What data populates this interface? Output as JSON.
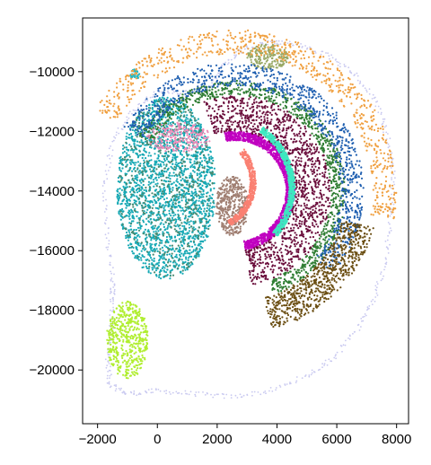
{
  "chart_data": {
    "type": "scatter",
    "title": "",
    "xlabel": "",
    "ylabel": "",
    "xlim": [
      -2500,
      8400
    ],
    "ylim": [
      -21800,
      -8200
    ],
    "y_inverted": true,
    "grid": false,
    "legend": "none",
    "x_ticks": [
      -2000,
      0,
      2000,
      4000,
      6000,
      8000
    ],
    "x_tick_labels": [
      "−2000",
      "0",
      "2000",
      "4000",
      "6000",
      "8000"
    ],
    "y_ticks": [
      -10000,
      -12000,
      -14000,
      -16000,
      -18000,
      -20000
    ],
    "y_tick_labels": [
      "−10000",
      "−12000",
      "−14000",
      "−16000",
      "−18000",
      "−20000"
    ],
    "series": [
      {
        "color": "#c9c9f0",
        "kind": "outline",
        "points": [
          [
            -1500,
            -17600
          ],
          [
            -1550,
            -18600
          ],
          [
            -1650,
            -19600
          ],
          [
            -1600,
            -20500
          ],
          [
            -1000,
            -20800
          ],
          [
            0,
            -20700
          ],
          [
            1200,
            -20800
          ],
          [
            2500,
            -20900
          ],
          [
            3800,
            -20700
          ],
          [
            5000,
            -20200
          ],
          [
            5900,
            -19600
          ],
          [
            6700,
            -18600
          ],
          [
            7200,
            -17700
          ],
          [
            7600,
            -16500
          ],
          [
            7800,
            -15000
          ],
          [
            7900,
            -13500
          ],
          [
            7700,
            -12200
          ],
          [
            7300,
            -11000
          ],
          [
            6600,
            -10100
          ],
          [
            5800,
            -9500
          ],
          [
            4800,
            -9100
          ],
          [
            3800,
            -9000
          ],
          [
            2900,
            -9200
          ],
          [
            2200,
            -9800
          ],
          [
            1700,
            -10600
          ],
          [
            1000,
            -10700
          ],
          [
            0,
            -10700
          ],
          [
            -800,
            -11300
          ],
          [
            -1500,
            -12300
          ],
          [
            -1750,
            -13800
          ],
          [
            -1700,
            -15500
          ],
          [
            -1500,
            -17000
          ]
        ]
      },
      {
        "color": "#17a9b5",
        "kind": "blob",
        "cx": 300,
        "cy": -13900,
        "rx": 1650,
        "ry": 3050,
        "n": 2100
      },
      {
        "color": "#4a8a70",
        "kind": "blob",
        "cx": 300,
        "cy": -13900,
        "rx": 1600,
        "ry": 3000,
        "n": 500
      },
      {
        "color": "#ec8ab8",
        "kind": "blob",
        "cx": 700,
        "cy": -12200,
        "rx": 1100,
        "ry": 500,
        "n": 220
      },
      {
        "color": "#a07f72",
        "kind": "blob",
        "cx": 2500,
        "cy": -14500,
        "rx": 550,
        "ry": 1000,
        "n": 420
      },
      {
        "color": "#98a865",
        "kind": "blob",
        "cx": 3700,
        "cy": -9500,
        "rx": 700,
        "ry": 420,
        "n": 200
      },
      {
        "color": "#2ab8c0",
        "kind": "blob",
        "cx": -750,
        "cy": -10100,
        "rx": 150,
        "ry": 180,
        "n": 40
      },
      {
        "color": "#c000c0",
        "kind": "arc",
        "cx": 2600,
        "cy": -14000,
        "rin": 1700,
        "rout": 2000,
        "a0": -80,
        "a1": 100,
        "n": 1500
      },
      {
        "color": "#6a0d3b",
        "kind": "arc",
        "cx": 2600,
        "cy": -14000,
        "rin": 2000,
        "rout": 3200,
        "a0": -80,
        "a1": 110,
        "n": 1200
      },
      {
        "color": "#2e7d32",
        "kind": "arc",
        "cx": 2600,
        "cy": -14000,
        "rin": 3200,
        "rout": 3700,
        "a0": -70,
        "a1": 150,
        "n": 900
      },
      {
        "color": "#1f5fb0",
        "kind": "arc",
        "cx": 2600,
        "cy": -14000,
        "rin": 3500,
        "rout": 4300,
        "a0": -40,
        "a1": 150,
        "n": 900
      },
      {
        "color": "#6b4e12",
        "kind": "arc",
        "cx": 2600,
        "cy": -14000,
        "rin": 3700,
        "rout": 4800,
        "a0": -75,
        "a1": -15,
        "n": 700
      },
      {
        "color": "#f0a040",
        "kind": "arc",
        "cx": 2600,
        "cy": -14000,
        "rin": 4600,
        "rout": 5400,
        "a0": -10,
        "a1": 150,
        "n": 700
      },
      {
        "color": "#b0ee30",
        "kind": "blob",
        "cx": -1000,
        "cy": -19000,
        "rx": 700,
        "ry": 1300,
        "n": 500
      },
      {
        "color": "#fa8072",
        "kind": "arc",
        "cx": 1600,
        "cy": -13700,
        "rin": 1500,
        "rout": 1700,
        "a0": -60,
        "a1": 40,
        "n": 500
      },
      {
        "color": "#3ee8c0",
        "kind": "arc",
        "cx": 2100,
        "cy": -13900,
        "rin": 2300,
        "rout": 2500,
        "a0": -40,
        "a1": 55,
        "n": 700
      }
    ]
  }
}
